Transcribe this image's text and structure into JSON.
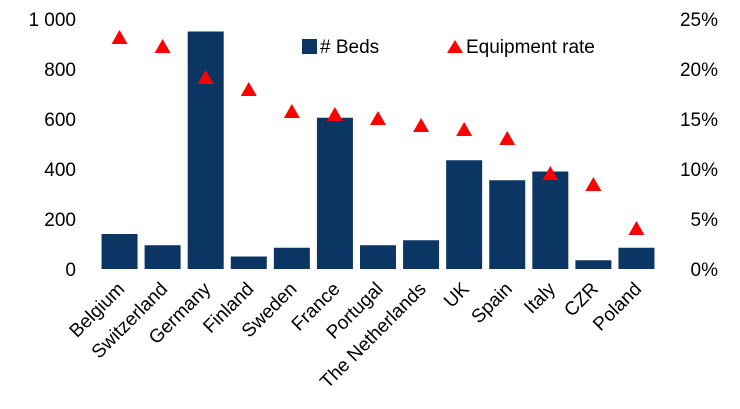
{
  "chart_data": {
    "type": "bar",
    "categories": [
      "Belgium",
      "Switzerland",
      "Germany",
      "Finland",
      "Sweden",
      "France",
      "Portugal",
      "The Netherlands",
      "UK",
      "Spain",
      "Italy",
      "CZR",
      "Poland"
    ],
    "series": [
      {
        "name": "# Beds",
        "type": "bar",
        "axis": "left",
        "color": "#0b3563",
        "values": [
          140,
          95,
          950,
          50,
          85,
          605,
          95,
          115,
          435,
          355,
          390,
          35,
          85
        ]
      },
      {
        "name": "Equipment rate",
        "type": "scatter",
        "marker": "triangle",
        "axis": "right",
        "color": "#ff0000",
        "values": [
          0.232,
          0.223,
          0.192,
          0.18,
          0.158,
          0.155,
          0.151,
          0.144,
          0.14,
          0.131,
          0.096,
          0.085,
          0.041
        ]
      }
    ],
    "y_left": {
      "ylim": [
        0,
        1000
      ],
      "ticks": [
        0,
        200,
        400,
        600,
        800,
        1000
      ],
      "tick_labels": [
        "0",
        "200",
        "400",
        "600",
        "800",
        "1 000"
      ]
    },
    "y_right": {
      "ylim": [
        0,
        0.25
      ],
      "ticks": [
        0,
        0.05,
        0.1,
        0.15,
        0.2,
        0.25
      ],
      "tick_labels": [
        "0%",
        "5%",
        "10%",
        "15%",
        "20%",
        "25%"
      ]
    },
    "legend": {
      "placement": "top-right",
      "labels": [
        "# Beds",
        "Equipment rate"
      ]
    },
    "grid": false
  }
}
